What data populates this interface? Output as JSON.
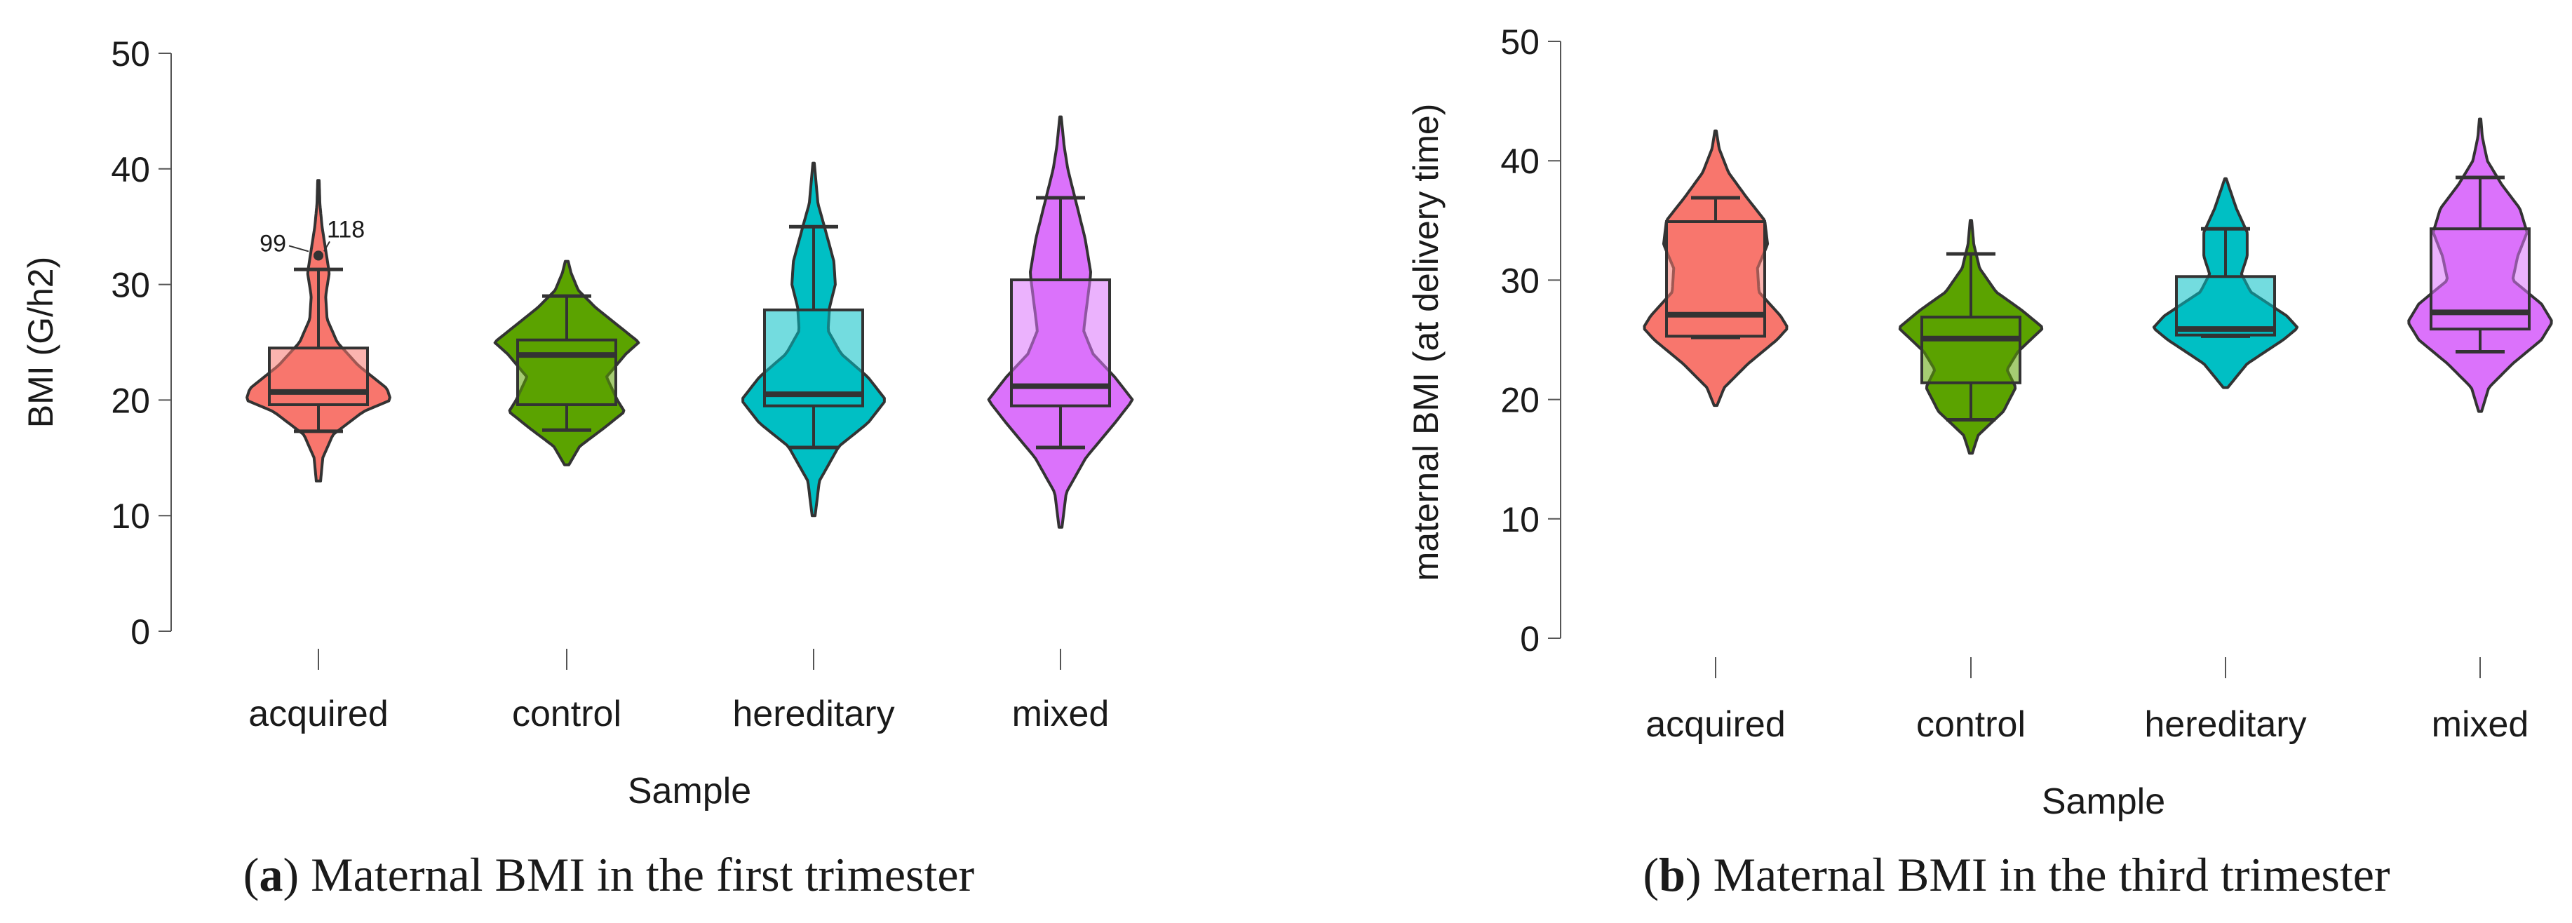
{
  "chart_data": [
    {
      "type": "violin",
      "panel_label": "a",
      "caption": "Maternal BMI in the first trimester",
      "xlabel": "Sample",
      "ylabel": "BMI (G/h2)",
      "ylim": [
        0,
        50
      ],
      "yticks": [
        0,
        10,
        20,
        30,
        40,
        50
      ],
      "categories": [
        "acquired",
        "control",
        "hereditary",
        "mixed"
      ],
      "colors": [
        "#F8766D",
        "#5BA300",
        "#00BFC4",
        "#DB72FB"
      ],
      "groups": [
        {
          "category": "acquired",
          "violin_range": [
            13,
            39
          ],
          "density": [
            [
              13,
              0.03
            ],
            [
              15,
              0.06
            ],
            [
              17,
              0.2
            ],
            [
              19,
              0.62
            ],
            [
              20,
              1.0
            ],
            [
              21,
              0.95
            ],
            [
              23,
              0.55
            ],
            [
              25,
              0.26
            ],
            [
              27,
              0.12
            ],
            [
              29,
              0.1
            ],
            [
              31,
              0.15
            ],
            [
              33,
              0.1
            ],
            [
              35,
              0.05
            ],
            [
              37,
              0.02
            ],
            [
              39,
              0.01
            ]
          ],
          "whisker_low": 17.3,
          "q1": 19.6,
          "median": 20.7,
          "q3": 24.5,
          "whisker_high": 31.3,
          "outliers": [
            {
              "label": "99",
              "value": 32.5
            },
            {
              "label": "118",
              "value": 32.5
            }
          ]
        },
        {
          "category": "control",
          "violin_range": [
            14.4,
            32
          ],
          "density": [
            [
              14.4,
              0.03
            ],
            [
              16,
              0.18
            ],
            [
              17.5,
              0.5
            ],
            [
              19,
              0.8
            ],
            [
              20,
              0.7
            ],
            [
              22,
              0.55
            ],
            [
              24,
              0.82
            ],
            [
              25,
              1.0
            ],
            [
              26,
              0.8
            ],
            [
              28,
              0.4
            ],
            [
              29.5,
              0.16
            ],
            [
              31,
              0.06
            ],
            [
              32,
              0.02
            ]
          ],
          "whisker_low": 17.4,
          "q1": 19.6,
          "median": 23.9,
          "q3": 25.2,
          "whisker_high": 29.0,
          "outliers": []
        },
        {
          "category": "hereditary",
          "violin_range": [
            10,
            40.5
          ],
          "density": [
            [
              10,
              0.02
            ],
            [
              13,
              0.08
            ],
            [
              16,
              0.35
            ],
            [
              18,
              0.75
            ],
            [
              20,
              1.0
            ],
            [
              22,
              0.75
            ],
            [
              24,
              0.38
            ],
            [
              26,
              0.2
            ],
            [
              28,
              0.22
            ],
            [
              30,
              0.3
            ],
            [
              32,
              0.28
            ],
            [
              35,
              0.15
            ],
            [
              37,
              0.06
            ],
            [
              40.5,
              0.01
            ]
          ],
          "whisker_low": 15.9,
          "q1": 19.5,
          "median": 20.5,
          "q3": 27.8,
          "whisker_high": 35.0,
          "outliers": []
        },
        {
          "category": "mixed",
          "violin_range": [
            9,
            44.5
          ],
          "density": [
            [
              9,
              0.02
            ],
            [
              12,
              0.08
            ],
            [
              15,
              0.35
            ],
            [
              18,
              0.75
            ],
            [
              20,
              1.0
            ],
            [
              22,
              0.75
            ],
            [
              24,
              0.45
            ],
            [
              26,
              0.32
            ],
            [
              28,
              0.36
            ],
            [
              31,
              0.42
            ],
            [
              34,
              0.34
            ],
            [
              37,
              0.22
            ],
            [
              40,
              0.1
            ],
            [
              42,
              0.05
            ],
            [
              44.5,
              0.01
            ]
          ],
          "whisker_low": 15.9,
          "q1": 19.5,
          "median": 21.2,
          "q3": 30.4,
          "whisker_high": 37.5,
          "outliers": []
        }
      ]
    },
    {
      "type": "violin",
      "panel_label": "b",
      "caption": "Maternal BMI in the third trimester",
      "xlabel": "Sample",
      "ylabel": "maternal BMI (at delivery time)",
      "ylim": [
        0,
        50
      ],
      "yticks": [
        0,
        10,
        20,
        30,
        40,
        50
      ],
      "categories": [
        "acquired",
        "control",
        "hereditary",
        "mixed"
      ],
      "colors": [
        "#F8766D",
        "#5BA300",
        "#00BFC4",
        "#DB72FB"
      ],
      "groups": [
        {
          "category": "acquired",
          "violin_range": [
            19.5,
            42.5
          ],
          "density": [
            [
              19.5,
              0.02
            ],
            [
              21,
              0.12
            ],
            [
              23,
              0.45
            ],
            [
              25,
              0.85
            ],
            [
              26,
              1.0
            ],
            [
              27,
              0.9
            ],
            [
              29,
              0.6
            ],
            [
              31,
              0.58
            ],
            [
              33,
              0.72
            ],
            [
              35,
              0.68
            ],
            [
              37,
              0.42
            ],
            [
              39,
              0.18
            ],
            [
              41,
              0.05
            ],
            [
              42.5,
              0.01
            ]
          ],
          "whisker_low": 25.2,
          "q1": 25.3,
          "median": 27.1,
          "q3": 34.9,
          "whisker_high": 36.9,
          "outliers": []
        },
        {
          "category": "control",
          "violin_range": [
            15.5,
            35
          ],
          "density": [
            [
              15.5,
              0.02
            ],
            [
              17,
              0.1
            ],
            [
              19,
              0.45
            ],
            [
              21,
              0.62
            ],
            [
              22.5,
              0.5
            ],
            [
              24,
              0.65
            ],
            [
              26,
              1.0
            ],
            [
              27.5,
              0.7
            ],
            [
              29,
              0.35
            ],
            [
              31,
              0.12
            ],
            [
              33,
              0.04
            ],
            [
              35,
              0.01
            ]
          ],
          "whisker_low": 18.3,
          "q1": 21.4,
          "median": 25.1,
          "q3": 26.9,
          "whisker_high": 32.2,
          "outliers": []
        },
        {
          "category": "hereditary",
          "violin_range": [
            21,
            38.5
          ],
          "density": [
            [
              21,
              0.03
            ],
            [
              23,
              0.3
            ],
            [
              25,
              0.8
            ],
            [
              26,
              1.0
            ],
            [
              27,
              0.85
            ],
            [
              29,
              0.35
            ],
            [
              30.5,
              0.22
            ],
            [
              32,
              0.3
            ],
            [
              34,
              0.3
            ],
            [
              36,
              0.15
            ],
            [
              38.5,
              0.01
            ]
          ],
          "whisker_low": 25.3,
          "q1": 25.4,
          "median": 25.9,
          "q3": 30.3,
          "whisker_high": 34.3,
          "outliers": []
        },
        {
          "category": "mixed",
          "violin_range": [
            19,
            43.5
          ],
          "density": [
            [
              19,
              0.02
            ],
            [
              21,
              0.12
            ],
            [
              23,
              0.45
            ],
            [
              25,
              0.85
            ],
            [
              26.5,
              1.0
            ],
            [
              28,
              0.85
            ],
            [
              30,
              0.45
            ],
            [
              32,
              0.52
            ],
            [
              34,
              0.65
            ],
            [
              36,
              0.55
            ],
            [
              38,
              0.3
            ],
            [
              40,
              0.1
            ],
            [
              42,
              0.03
            ],
            [
              43.5,
              0.01
            ]
          ],
          "whisker_low": 24.0,
          "q1": 25.9,
          "median": 27.3,
          "q3": 34.3,
          "whisker_high": 38.6,
          "outliers": []
        }
      ]
    }
  ]
}
